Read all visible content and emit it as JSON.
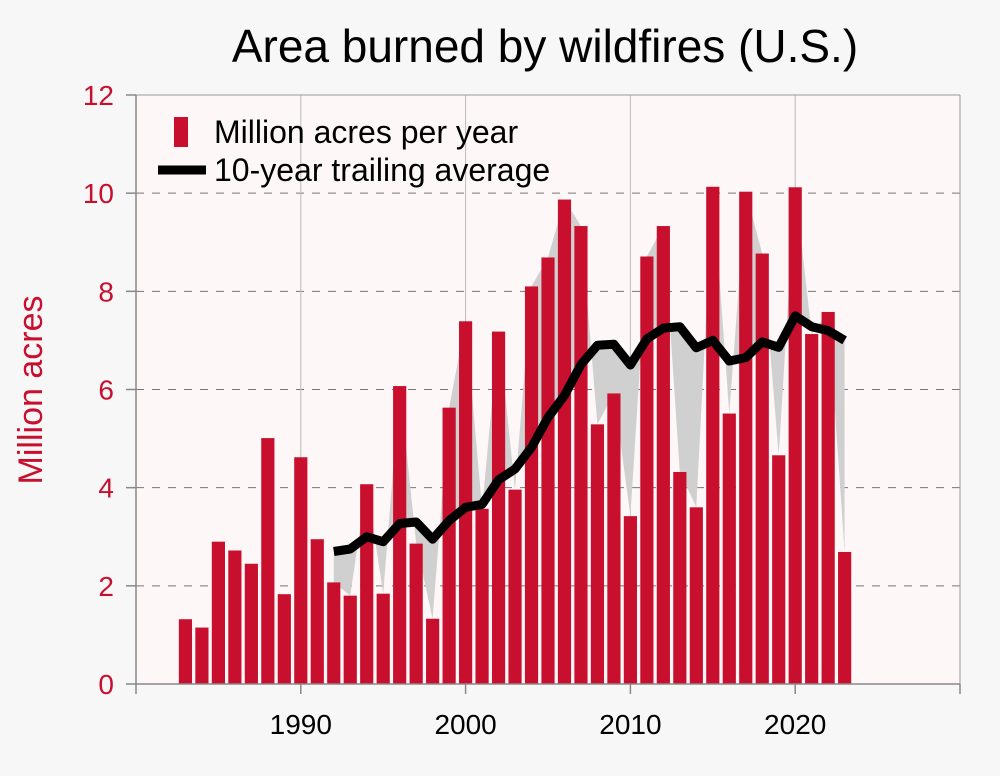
{
  "colors": {
    "bar": "#c8102e",
    "average_line": "#000000",
    "fill_between": "#d0d0d0",
    "axis_text": "#c8102e",
    "plot_background": "#fdf7f7"
  },
  "chart_data": {
    "type": "bar",
    "title": "Area burned by wildfires (U.S.)",
    "xlabel": "",
    "ylabel": "Million acres",
    "xlim": [
      1980,
      2030
    ],
    "ylim": [
      0,
      12
    ],
    "x_ticks": [
      "1990",
      "2000",
      "2010",
      "2020"
    ],
    "x_tick_values": [
      1990,
      2000,
      2010,
      2020
    ],
    "y_ticks": [
      "0",
      "2",
      "4",
      "6",
      "8",
      "10",
      "12"
    ],
    "y_tick_values": [
      0,
      2,
      4,
      6,
      8,
      10,
      12
    ],
    "grid": "horizontal dashed",
    "legend_placement": "top-left",
    "series": [
      {
        "name": "Million acres per year",
        "type": "bar",
        "x": [
          1983,
          1984,
          1985,
          1986,
          1987,
          1988,
          1989,
          1990,
          1991,
          1992,
          1993,
          1994,
          1995,
          1996,
          1997,
          1998,
          1999,
          2000,
          2001,
          2002,
          2003,
          2004,
          2005,
          2006,
          2007,
          2008,
          2009,
          2010,
          2011,
          2012,
          2013,
          2014,
          2015,
          2016,
          2017,
          2018,
          2019,
          2020,
          2021,
          2022,
          2023
        ],
        "values": [
          1.32,
          1.15,
          2.9,
          2.72,
          2.45,
          5.01,
          1.83,
          4.62,
          2.95,
          2.07,
          1.8,
          4.07,
          1.84,
          6.07,
          2.86,
          1.33,
          5.63,
          7.39,
          3.57,
          7.18,
          3.96,
          8.1,
          8.69,
          9.87,
          9.33,
          5.29,
          5.92,
          3.42,
          8.71,
          9.33,
          4.32,
          3.6,
          10.13,
          5.51,
          10.03,
          8.77,
          4.66,
          10.12,
          7.13,
          7.58,
          2.69
        ]
      },
      {
        "name": "10-year trailing average",
        "type": "line",
        "x": [
          1992,
          1993,
          1994,
          1995,
          1996,
          1997,
          1998,
          1999,
          2000,
          2001,
          2002,
          2003,
          2004,
          2005,
          2006,
          2007,
          2008,
          2009,
          2010,
          2011,
          2012,
          2013,
          2014,
          2015,
          2016,
          2017,
          2018,
          2019,
          2020,
          2021,
          2022,
          2023
        ],
        "values": [
          2.7,
          2.75,
          3.0,
          2.9,
          3.27,
          3.3,
          2.95,
          3.33,
          3.6,
          3.66,
          4.16,
          4.38,
          4.82,
          5.43,
          5.88,
          6.51,
          6.9,
          6.92,
          6.5,
          7.03,
          7.25,
          7.28,
          6.85,
          7.0,
          6.58,
          6.65,
          6.97,
          6.86,
          7.5,
          7.28,
          7.2,
          7.0
        ]
      }
    ]
  }
}
